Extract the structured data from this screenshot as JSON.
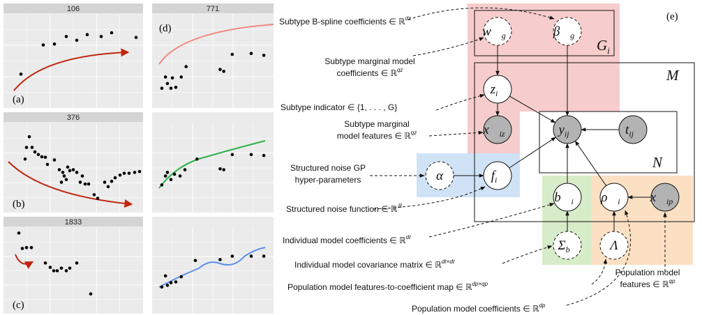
{
  "panels": [
    {
      "title": "106",
      "label": "(a)",
      "points": [
        [
          12.5,
          36
        ],
        [
          28.5,
          67
        ],
        [
          36.5,
          68
        ],
        [
          45,
          76
        ],
        [
          52.5,
          72
        ],
        [
          60,
          78
        ],
        [
          70,
          76
        ],
        [
          77.5,
          80
        ],
        [
          95,
          75
        ]
      ]
    },
    {
      "title": "376",
      "label": "(b)",
      "points": [
        [
          18.5,
          85
        ],
        [
          16.5,
          73
        ],
        [
          20.5,
          73
        ],
        [
          22.5,
          68
        ],
        [
          25,
          65
        ],
        [
          27.5,
          62.5
        ],
        [
          30,
          62
        ],
        [
          15.5,
          60
        ],
        [
          31.5,
          54
        ],
        [
          36.5,
          59
        ],
        [
          40,
          48
        ],
        [
          42.5,
          45
        ],
        [
          43.5,
          41
        ],
        [
          46,
          51
        ],
        [
          47.5,
          47
        ],
        [
          50,
          48
        ],
        [
          52.5,
          45
        ],
        [
          55,
          34
        ],
        [
          56.5,
          41
        ],
        [
          58.5,
          32
        ],
        [
          61,
          32
        ],
        [
          65,
          20
        ],
        [
          67.5,
          16
        ],
        [
          72.5,
          34
        ],
        [
          75,
          29
        ],
        [
          77.5,
          35
        ],
        [
          80,
          39
        ],
        [
          83.5,
          42
        ],
        [
          86.5,
          44
        ],
        [
          90,
          44
        ],
        [
          94,
          45
        ],
        [
          97.5,
          46
        ],
        [
          41.5,
          34
        ],
        [
          45,
          37
        ]
      ]
    },
    {
      "title": "1833",
      "label": "(c)",
      "points": [
        [
          11,
          94
        ],
        [
          13.5,
          76
        ],
        [
          16.5,
          77
        ],
        [
          20,
          77
        ],
        [
          30,
          59
        ],
        [
          33.5,
          54
        ],
        [
          36,
          50
        ],
        [
          38.5,
          50
        ],
        [
          41.5,
          53
        ],
        [
          45,
          50
        ],
        [
          47.5,
          53
        ],
        [
          52.5,
          59
        ],
        [
          62.5,
          23
        ]
      ]
    },
    {
      "title": "771",
      "label": "(d)",
      "points": [
        [
          8,
          21
        ],
        [
          11,
          33
        ],
        [
          12.6,
          26
        ],
        [
          15.5,
          21
        ],
        [
          16.7,
          32
        ],
        [
          19.5,
          22
        ],
        [
          24,
          33
        ],
        [
          28,
          44
        ],
        [
          56,
          41
        ],
        [
          59,
          39
        ],
        [
          66,
          57
        ],
        [
          81.6,
          58
        ],
        [
          92,
          56
        ]
      ]
    },
    {
      "points": [
        [
          8,
          31
        ],
        [
          11,
          41
        ],
        [
          12.6,
          45
        ],
        [
          15.5,
          37
        ],
        [
          18.4,
          43
        ],
        [
          23,
          41
        ],
        [
          27,
          48
        ],
        [
          37,
          60
        ],
        [
          56,
          49
        ],
        [
          59,
          48
        ],
        [
          66,
          65
        ],
        [
          81.6,
          65
        ],
        [
          92,
          64
        ]
      ]
    },
    {
      "points": [
        [
          8,
          31
        ],
        [
          11,
          44
        ],
        [
          12.6,
          33
        ],
        [
          15.5,
          36
        ],
        [
          19.5,
          37
        ],
        [
          24,
          43
        ],
        [
          35.6,
          62
        ],
        [
          56,
          63
        ],
        [
          66,
          67
        ],
        [
          81.6,
          67
        ],
        [
          92,
          67
        ]
      ]
    }
  ],
  "diagram": {
    "label": "(e)",
    "plates": [
      "G",
      "M",
      "N"
    ],
    "plate_subs": [
      "i"
    ],
    "nodes": [
      {
        "base": "w⃗",
        "sub": "g"
      },
      {
        "base": "β⃗",
        "sub": "g"
      },
      {
        "base": "z",
        "sub": "i"
      },
      {
        "base": "x⃗",
        "sub": "iz"
      },
      {
        "base": "y",
        "sub": "ij"
      },
      {
        "base": "t",
        "sub": "ij"
      },
      {
        "base": "α"
      },
      {
        "base": "f",
        "sub": "i"
      },
      {
        "base": "b⃗",
        "sub": "i"
      },
      {
        "base": "ρ⃗",
        "sub": "i"
      },
      {
        "base": "x⃗",
        "sub": "ip"
      },
      {
        "base": "Σ",
        "sub": "b"
      },
      {
        "base": "Λ"
      }
    ],
    "annotations": [
      {
        "lines": [
          "Subtype B-spline coefficients ∈ ℝ"
        ],
        "power": "dz"
      },
      {
        "lines": [
          "Subtype marginal model",
          "coefficients ∈ ℝ"
        ],
        "power": "qz"
      },
      {
        "lines": [
          "Subtype indicator ∈ {1, . . . , G}"
        ]
      },
      {
        "lines": [
          "Subtype marginal",
          "model features ∈ ℝ"
        ],
        "power": "qz"
      },
      {
        "lines": [
          "Structured noise GP",
          "hyper-parameters"
        ]
      },
      {
        "lines": [
          "Structured noise function ∈ ℝ"
        ],
        "power": "ℝ"
      },
      {
        "lines": [
          "Individual model coefficients ∈ ℝ"
        ],
        "power": "dℓ"
      },
      {
        "lines": [
          "Individual model covariance matrix ∈ ℝ"
        ],
        "power": "dℓ×dℓ"
      },
      {
        "lines": [
          "Population model features-to-coefficient map ∈ ℝ"
        ],
        "power": "dp×qp"
      },
      {
        "lines": [
          "Population model coefficients ∈ ℝ"
        ],
        "power": "dp"
      },
      {
        "lines": [
          "Population model",
          "features ∈ ℝ"
        ],
        "power": "qp"
      }
    ]
  }
}
